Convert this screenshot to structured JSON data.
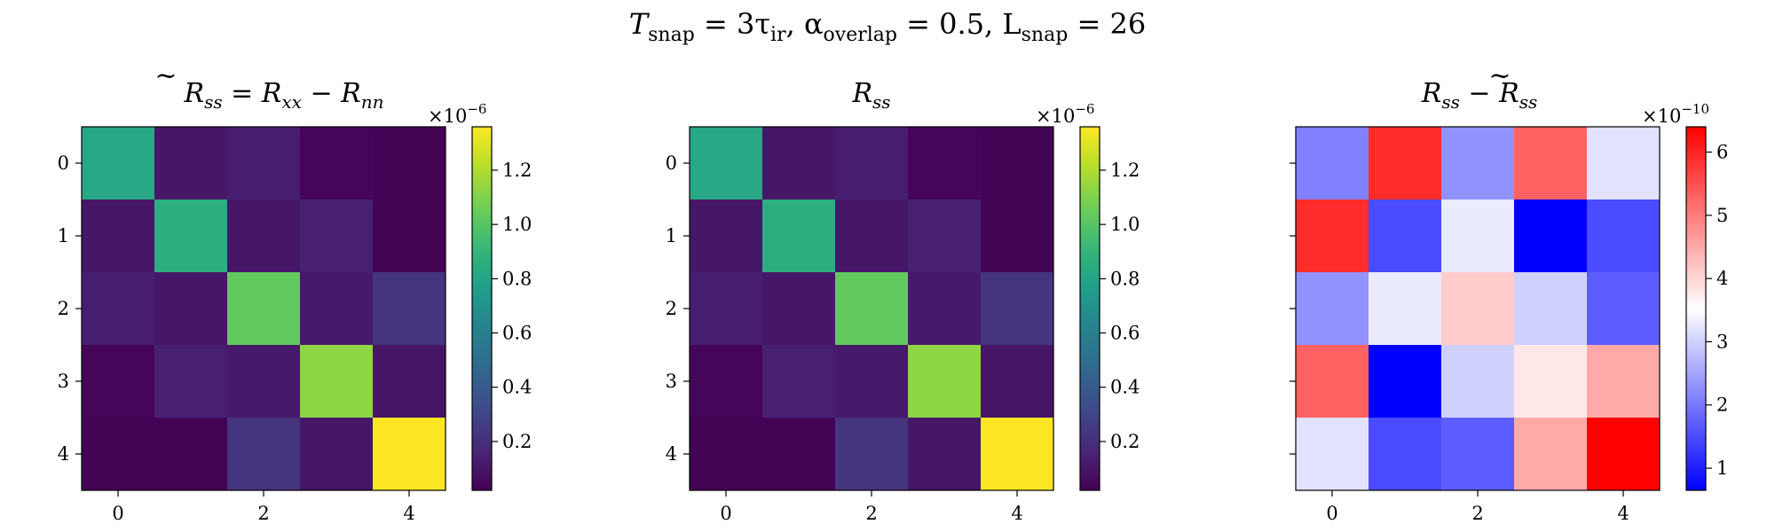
{
  "figure": {
    "suptitle": {
      "t1": "T",
      "t1_sub": "snap",
      "t1_rest": " = 3τ",
      "t1_rest_sub": "ir",
      "a": ",    α",
      "a_sub": "overlap",
      "a_rest": " = 0.5,    L",
      "l_sub": "snap",
      "l_rest": " = 26"
    }
  },
  "chart_data": [
    {
      "type": "heatmap",
      "title": {
        "r": "R",
        "r_sub": "ss",
        "mid": " = R",
        "x_sub": "xx",
        "minus": " − R",
        "n_sub": "nn",
        "tilde": true
      },
      "x_ticks": [
        "0",
        "2",
        "4"
      ],
      "y_ticks": [
        "0",
        "1",
        "2",
        "3",
        "4"
      ],
      "colormap": "viridis",
      "color_range": [
        0.02,
        1.36
      ],
      "colorbar_ticks": [
        "0.2",
        "0.4",
        "0.6",
        "0.8",
        "1.0",
        "1.2"
      ],
      "colorbar_tick_values": [
        0.2,
        0.4,
        0.6,
        0.8,
        1.0,
        1.2
      ],
      "colorbar_multiplier": {
        "base": "×10",
        "exp": "−6"
      },
      "values": [
        [
          0.82,
          0.1,
          0.13,
          0.04,
          0.03
        ],
        [
          0.1,
          0.86,
          0.1,
          0.14,
          0.03
        ],
        [
          0.13,
          0.1,
          1.03,
          0.11,
          0.22
        ],
        [
          0.04,
          0.14,
          0.11,
          1.13,
          0.1
        ],
        [
          0.03,
          0.03,
          0.22,
          0.1,
          1.36
        ]
      ]
    },
    {
      "type": "heatmap",
      "title": {
        "r": "R",
        "r_sub": "ss",
        "tilde": false
      },
      "x_ticks": [
        "0",
        "2",
        "4"
      ],
      "y_ticks": [
        "0",
        "1",
        "2",
        "3",
        "4"
      ],
      "colormap": "viridis",
      "color_range": [
        0.02,
        1.36
      ],
      "colorbar_ticks": [
        "0.2",
        "0.4",
        "0.6",
        "0.8",
        "1.0",
        "1.2"
      ],
      "colorbar_tick_values": [
        0.2,
        0.4,
        0.6,
        0.8,
        1.0,
        1.2
      ],
      "colorbar_multiplier": {
        "base": "×10",
        "exp": "−6"
      },
      "values": [
        [
          0.82,
          0.1,
          0.13,
          0.04,
          0.03
        ],
        [
          0.1,
          0.86,
          0.1,
          0.14,
          0.03
        ],
        [
          0.13,
          0.1,
          1.03,
          0.11,
          0.22
        ],
        [
          0.04,
          0.14,
          0.11,
          1.13,
          0.1
        ],
        [
          0.03,
          0.03,
          0.22,
          0.1,
          1.36
        ]
      ]
    },
    {
      "type": "heatmap",
      "title": {
        "r": "R",
        "r_sub": "ss",
        "minus": " − R",
        "n_sub": "ss",
        "tilde_second": true
      },
      "x_ticks": [
        "0",
        "2",
        "4"
      ],
      "colormap": "bwr",
      "color_range": [
        0.65,
        6.4
      ],
      "colorbar_ticks": [
        "1",
        "2",
        "3",
        "4",
        "5",
        "6"
      ],
      "colorbar_tick_values": [
        1,
        2,
        3,
        4,
        5,
        6
      ],
      "colorbar_multiplier": {
        "base": "×10",
        "exp": "−10"
      },
      "values": [
        [
          2.1,
          5.9,
          2.3,
          5.3,
          3.2
        ],
        [
          5.9,
          1.5,
          3.3,
          0.65,
          1.5
        ],
        [
          2.3,
          3.3,
          4.1,
          3.0,
          1.7
        ],
        [
          5.3,
          0.65,
          3.0,
          3.8,
          4.5
        ],
        [
          3.2,
          1.5,
          1.7,
          4.5,
          6.4
        ]
      ]
    }
  ]
}
